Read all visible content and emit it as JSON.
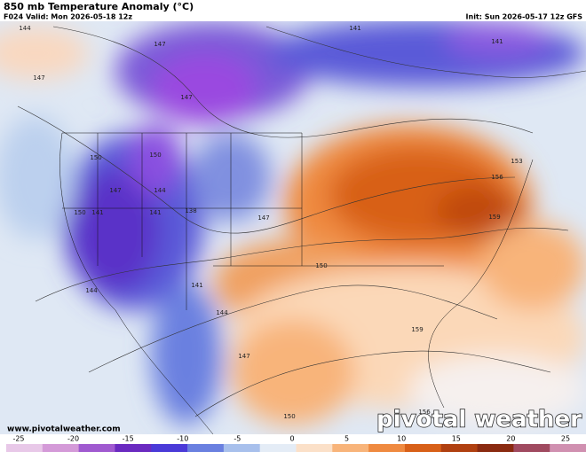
{
  "header": {
    "title": "850 mb Temperature Anomaly (°C)",
    "valid": "F024 Valid: Mon 2026-05-18 12z",
    "init": "Init: Sun 2026-05-17 12z GFS"
  },
  "footer": {
    "website": "www.pivotalweather.com",
    "logo": "pivotal weather"
  },
  "contour_labels": [
    "144",
    "147",
    "147",
    "141",
    "141",
    "147",
    "150",
    "150",
    "147",
    "144",
    "141",
    "150",
    "141",
    "138",
    "153",
    "156",
    "159",
    "150",
    "147",
    "144",
    "159",
    "150",
    "156",
    "144",
    "141",
    "147"
  ],
  "colorbar": {
    "range": [
      -25,
      26
    ],
    "ticks": [
      -25,
      -20,
      -15,
      -10,
      -5,
      0,
      5,
      10,
      15,
      20,
      25
    ],
    "colors": [
      "#e8c8e8",
      "#d49ad8",
      "#a05ad0",
      "#6a2ac0",
      "#4a3ad8",
      "#6a80e0",
      "#a8c0ec",
      "#e4ecf6",
      "#fbe0c8",
      "#f8b47a",
      "#ef8a40",
      "#d86018",
      "#b04010",
      "#8a2a10",
      "#a04a60",
      "#d090b0"
    ]
  }
}
